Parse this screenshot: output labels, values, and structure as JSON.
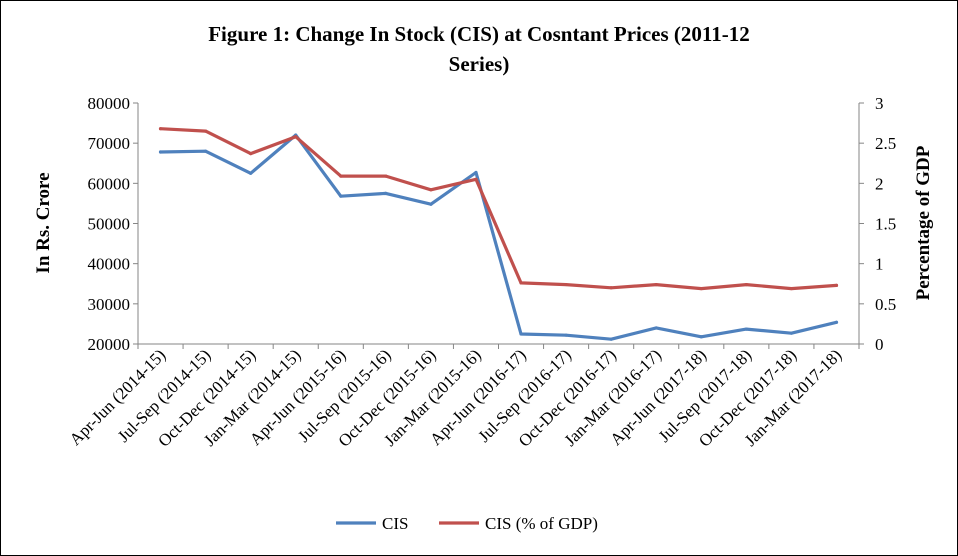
{
  "chart_data": {
    "type": "line",
    "title_lines": [
      "Figure 1: Change In Stock (CIS) at Cosntant Prices  (2011-12",
      "Series)"
    ],
    "ylabel": "In Rs. Crore",
    "y2label": "Percentage of GDP",
    "ylim": [
      20000,
      80000
    ],
    "y2lim": [
      0,
      3
    ],
    "yticks": [
      "20000",
      "30000",
      "40000",
      "50000",
      "60000",
      "70000",
      "80000"
    ],
    "y2ticks": [
      "0",
      "0.5",
      "1",
      "1.5",
      "2",
      "2.5",
      "3"
    ],
    "categories": [
      "Apr-Jun (2014-15)",
      "Jul-Sep (2014-15)",
      "Oct-Dec (2014-15)",
      "Jan-Mar (2014-15)",
      "Apr-Jun (2015-16)",
      "Jul-Sep (2015-16)",
      "Oct-Dec (2015-16)",
      "Jan-Mar (2015-16)",
      "Apr-Jun (2016-17)",
      "Jul-Sep (2016-17)",
      "Oct-Dec (2016-17)",
      "Jan-Mar (2016-17)",
      "Apr-Jun (2017-18)",
      "Jul-Sep (2017-18)",
      "Oct-Dec (2017-18)",
      "Jan-Mar (2017-18)"
    ],
    "series": [
      {
        "name": "CIS",
        "axis": "left",
        "color": "#4f81bd",
        "values": [
          67800,
          68000,
          62500,
          72000,
          56800,
          57500,
          54800,
          62700,
          22500,
          22200,
          21200,
          24000,
          21800,
          23700,
          22700,
          25400
        ]
      },
      {
        "name": "CIS (% of GDP)",
        "axis": "right",
        "color": "#c0504d",
        "values": [
          2.68,
          2.65,
          2.37,
          2.58,
          2.09,
          2.09,
          1.92,
          2.05,
          0.76,
          0.74,
          0.7,
          0.74,
          0.69,
          0.74,
          0.69,
          0.73
        ]
      }
    ],
    "grid": false,
    "legend_position": "bottom"
  }
}
